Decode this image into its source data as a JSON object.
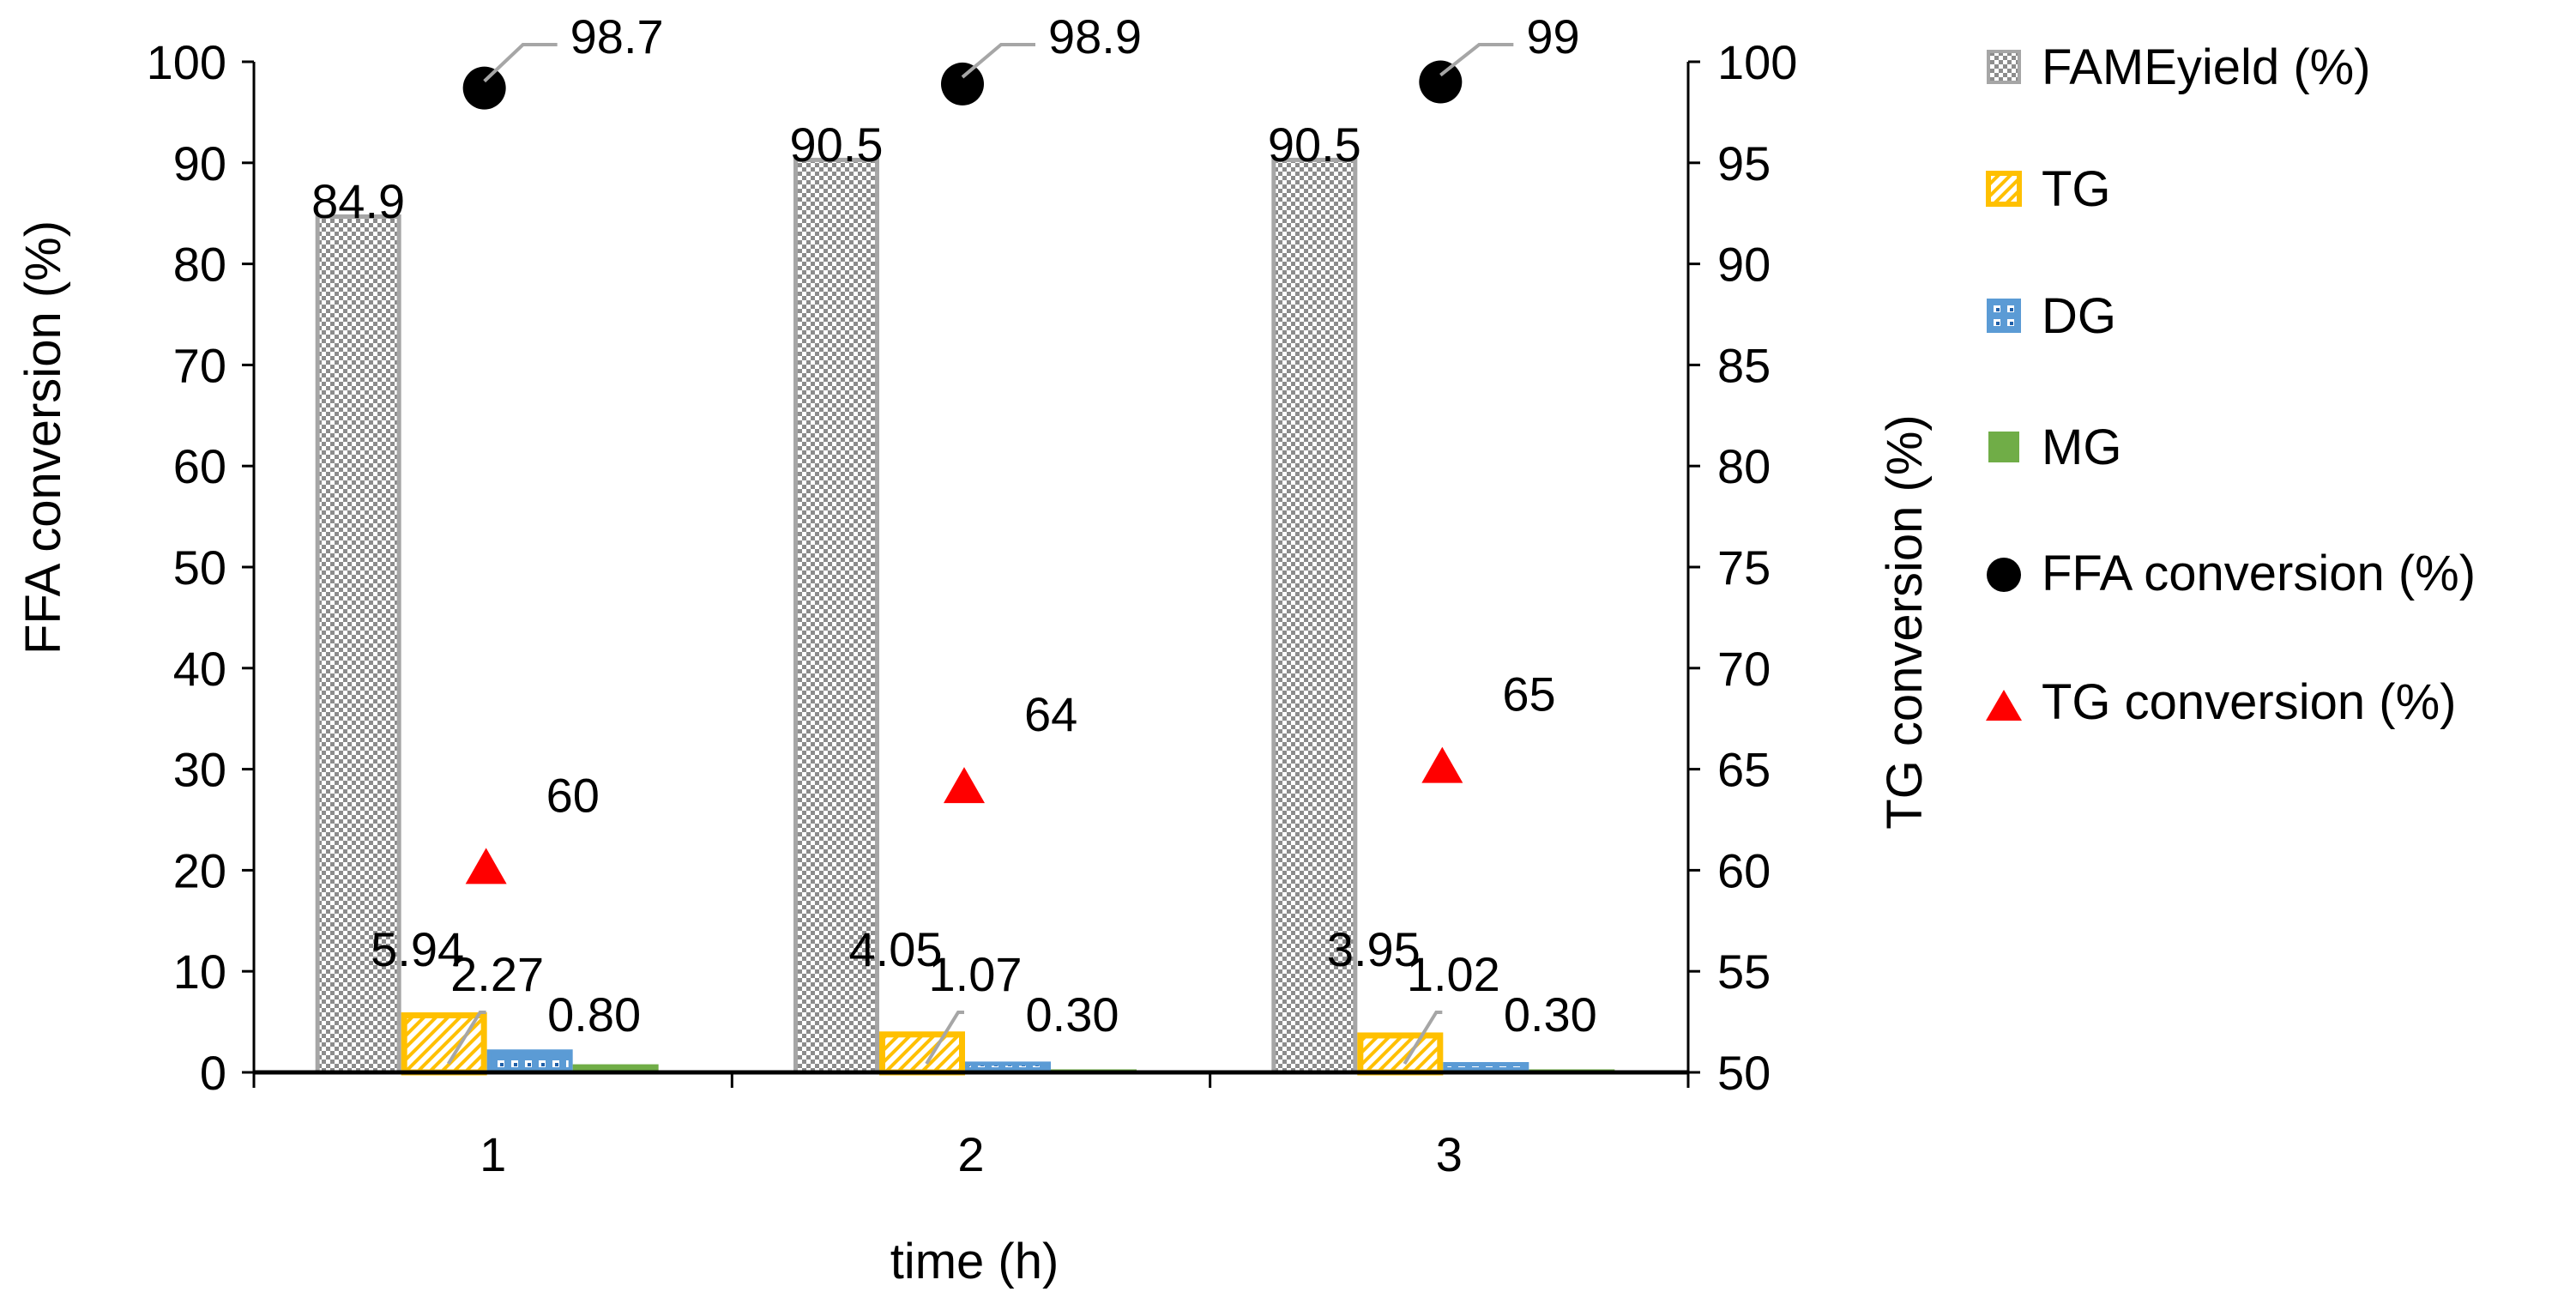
{
  "chart_data": {
    "type": "bar",
    "xlabel": "time (h)",
    "ylabel_left": "FFA conversion (%)",
    "ylabel_right": "TG conversion (%)",
    "ylim_left": [
      0,
      100
    ],
    "ylim_right": [
      50,
      100
    ],
    "yticks_left": [
      "0",
      "10",
      "20",
      "30",
      "40",
      "50",
      "60",
      "70",
      "80",
      "90",
      "100"
    ],
    "yticks_right": [
      "50",
      "55",
      "60",
      "65",
      "70",
      "75",
      "80",
      "85",
      "90",
      "95",
      "100"
    ],
    "categories": [
      "1",
      "2",
      "3"
    ],
    "series": [
      {
        "name": "FAME yield (%)",
        "kind": "bar",
        "axis": "left",
        "values": [
          84.9,
          90.5,
          90.5
        ],
        "labels": [
          "84.9",
          "90.5",
          "90.5"
        ],
        "color": "#a6a6a6"
      },
      {
        "name": "TG",
        "kind": "bar",
        "axis": "left",
        "values": [
          5.94,
          4.05,
          3.95
        ],
        "labels": [
          "5.94",
          "4.05",
          "3.95"
        ],
        "color": "#ffc000"
      },
      {
        "name": "DG",
        "kind": "bar",
        "axis": "left",
        "values": [
          2.27,
          1.07,
          1.02
        ],
        "labels": [
          "2.27",
          "1.07",
          "1.02"
        ],
        "color": "#5b9bd5"
      },
      {
        "name": "MG",
        "kind": "bar",
        "axis": "left",
        "values": [
          0.8,
          0.3,
          0.3
        ],
        "labels": [
          "0.80",
          "0.30",
          "0.30"
        ],
        "color": "#70ad47"
      },
      {
        "name": "FFA conversion (%)",
        "kind": "scatter",
        "marker": "circle",
        "axis": "right",
        "values": [
          98.7,
          98.9,
          99
        ],
        "labels": [
          "98.7",
          "98.9",
          "99"
        ],
        "color": "#000000"
      },
      {
        "name": "TG conversion (%)",
        "kind": "scatter",
        "marker": "triangle",
        "axis": "right",
        "values": [
          60,
          64,
          65
        ],
        "labels": [
          "60",
          "64",
          "65"
        ],
        "color": "#ff0000"
      }
    ],
    "legend": {
      "position": "right",
      "items": [
        "FAMEyield (%)",
        "TG",
        "DG",
        "MG",
        "FFA conversion (%)",
        "TG conversion (%)"
      ]
    }
  }
}
